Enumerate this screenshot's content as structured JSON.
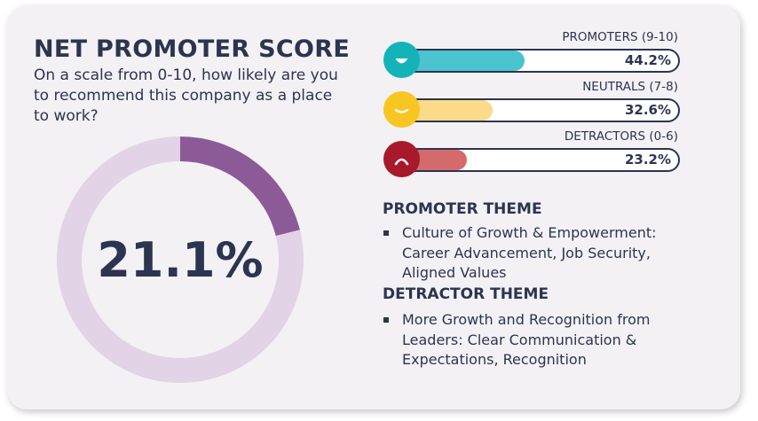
{
  "header": {
    "title": "NET PROMOTER SCORE",
    "question": "On a scale from 0-10, how likely are you to recommend this company as a place to work?"
  },
  "chart_data": [
    {
      "type": "pie",
      "variant": "donut",
      "center_label": "21.1%",
      "values": [
        21.1,
        78.9
      ],
      "colors": [
        "#8c5a97",
        "#e2d3e6"
      ]
    },
    {
      "type": "bar",
      "orientation": "horizontal",
      "unit": "%",
      "xlim": [
        0,
        100
      ],
      "categories": [
        "PROMOTERS (9-10)",
        "NEUTRALS (7-8)",
        "DETRACTORS (0-6)"
      ],
      "values": [
        44.2,
        32.6,
        23.2
      ],
      "value_labels": [
        "44.2%",
        "32.6%",
        "23.2%"
      ],
      "colors": [
        "#4cc4cf",
        "#fbdb8a",
        "#d46a6c"
      ],
      "face_colors": [
        "#14b3b8",
        "#f7c623",
        "#a8192c"
      ],
      "face_icons": [
        "smile-face-icon",
        "neutral-face-icon",
        "frown-face-icon"
      ]
    }
  ],
  "themes": {
    "promoter_heading": "PROMOTER THEME",
    "promoter_text": "Culture of Growth & Empowerment: Career Advancement, Job Security, Aligned Values",
    "detractor_heading": "DETRACTOR THEME",
    "detractor_text": "More Growth and Recognition from Leaders: Clear Communication & Expectations, Recognition"
  }
}
